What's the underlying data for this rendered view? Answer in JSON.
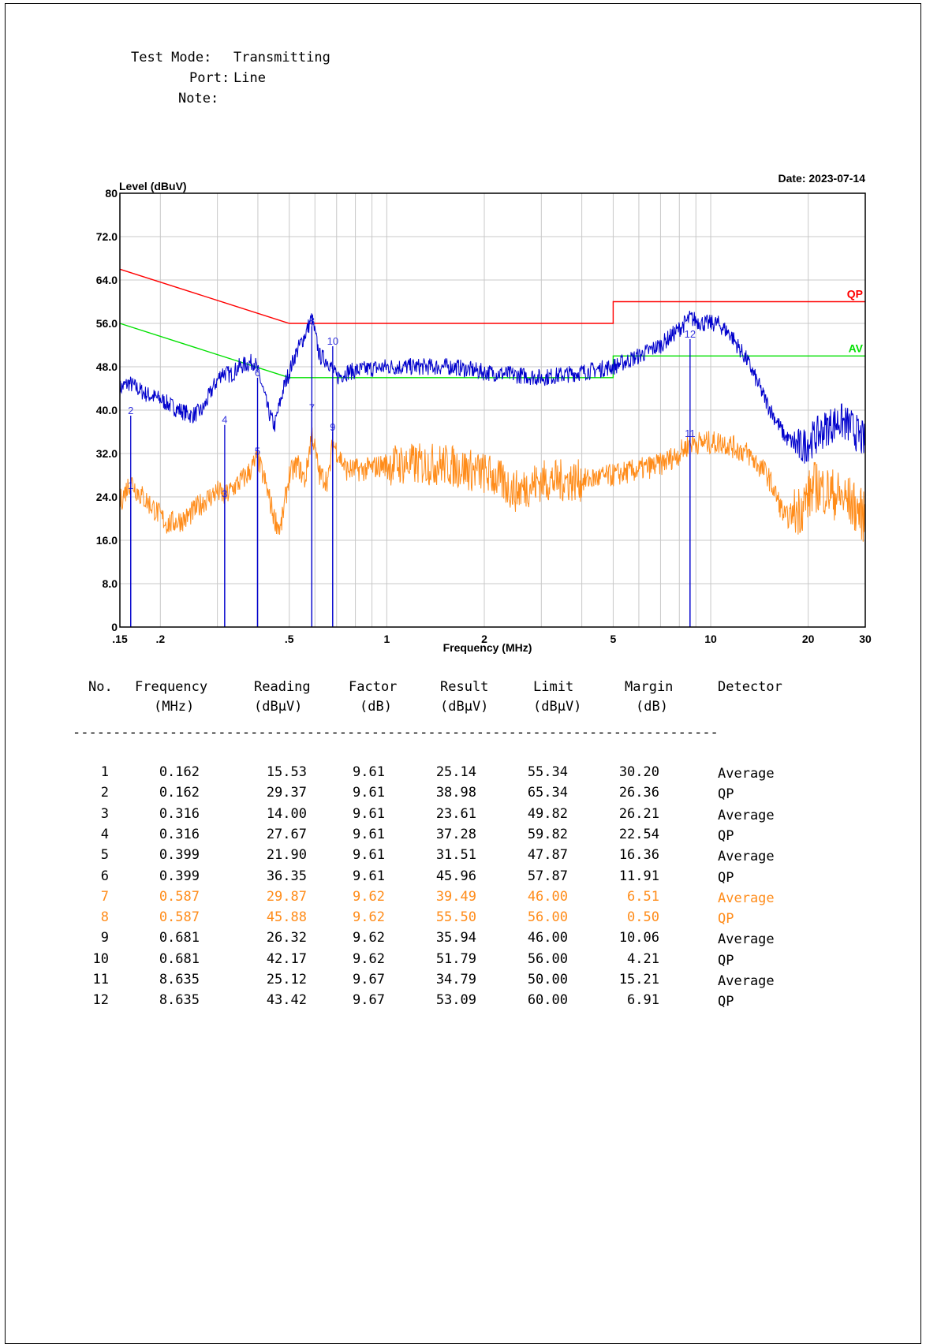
{
  "header": {
    "test_mode_label": "Test Mode:",
    "test_mode": "Transmitting",
    "port_label": "Port:",
    "port": "Line",
    "note_label": "Note:",
    "note": ""
  },
  "date_text": "Date: 2023-07-14",
  "table": {
    "columns": [
      {
        "name": "No.",
        "unit": ""
      },
      {
        "name": "Frequency",
        "unit": "(MHz)"
      },
      {
        "name": "Reading",
        "unit": "(dBµV)"
      },
      {
        "name": "Factor",
        "unit": "(dB)"
      },
      {
        "name": "Result",
        "unit": "(dBµV)"
      },
      {
        "name": "Limit",
        "unit": "(dBµV)"
      },
      {
        "name": "Margin",
        "unit": "(dB)"
      },
      {
        "name": "Detector",
        "unit": ""
      }
    ],
    "dashes": "--------------------------------------------------------------------------------",
    "rows": [
      {
        "no": "1",
        "freq": "0.162",
        "reading": "15.53",
        "factor": "9.61",
        "result": "25.14",
        "limit": "55.34",
        "margin": "30.20",
        "detector": "Average",
        "highlight": false
      },
      {
        "no": "2",
        "freq": "0.162",
        "reading": "29.37",
        "factor": "9.61",
        "result": "38.98",
        "limit": "65.34",
        "margin": "26.36",
        "detector": "QP",
        "highlight": false
      },
      {
        "no": "3",
        "freq": "0.316",
        "reading": "14.00",
        "factor": "9.61",
        "result": "23.61",
        "limit": "49.82",
        "margin": "26.21",
        "detector": "Average",
        "highlight": false
      },
      {
        "no": "4",
        "freq": "0.316",
        "reading": "27.67",
        "factor": "9.61",
        "result": "37.28",
        "limit": "59.82",
        "margin": "22.54",
        "detector": "QP",
        "highlight": false
      },
      {
        "no": "5",
        "freq": "0.399",
        "reading": "21.90",
        "factor": "9.61",
        "result": "31.51",
        "limit": "47.87",
        "margin": "16.36",
        "detector": "Average",
        "highlight": false
      },
      {
        "no": "6",
        "freq": "0.399",
        "reading": "36.35",
        "factor": "9.61",
        "result": "45.96",
        "limit": "57.87",
        "margin": "11.91",
        "detector": "QP",
        "highlight": false
      },
      {
        "no": "7",
        "freq": "0.587",
        "reading": "29.87",
        "factor": "9.62",
        "result": "39.49",
        "limit": "46.00",
        "margin": "6.51",
        "detector": "Average",
        "highlight": true
      },
      {
        "no": "8",
        "freq": "0.587",
        "reading": "45.88",
        "factor": "9.62",
        "result": "55.50",
        "limit": "56.00",
        "margin": "0.50",
        "detector": "QP",
        "highlight": true
      },
      {
        "no": "9",
        "freq": "0.681",
        "reading": "26.32",
        "factor": "9.62",
        "result": "35.94",
        "limit": "46.00",
        "margin": "10.06",
        "detector": "Average",
        "highlight": false
      },
      {
        "no": "10",
        "freq": "0.681",
        "reading": "42.17",
        "factor": "9.62",
        "result": "51.79",
        "limit": "56.00",
        "margin": "4.21",
        "detector": "QP",
        "highlight": false
      },
      {
        "no": "11",
        "freq": "8.635",
        "reading": "25.12",
        "factor": "9.67",
        "result": "34.79",
        "limit": "50.00",
        "margin": "15.21",
        "detector": "Average",
        "highlight": false
      },
      {
        "no": "12",
        "freq": "8.635",
        "reading": "43.42",
        "factor": "9.67",
        "result": "53.09",
        "limit": "60.00",
        "margin": "6.91",
        "detector": "QP",
        "highlight": false
      }
    ]
  },
  "chart_data": {
    "type": "line",
    "ylabel": "Level (dBuV)",
    "xlabel": "Frequency (MHz)",
    "x_scale": "log",
    "xlim": [
      0.15,
      30
    ],
    "ylim": [
      0,
      80
    ],
    "y_ticks": [
      {
        "v": 0,
        "label": "0"
      },
      {
        "v": 8,
        "label": "8.0"
      },
      {
        "v": 16,
        "label": "16.0"
      },
      {
        "v": 24,
        "label": "24.0"
      },
      {
        "v": 32,
        "label": "32.0"
      },
      {
        "v": 40,
        "label": "40.0"
      },
      {
        "v": 48,
        "label": "48.0"
      },
      {
        "v": 56,
        "label": "56.0"
      },
      {
        "v": 64,
        "label": "64.0"
      },
      {
        "v": 72,
        "label": "72.0"
      },
      {
        "v": 80,
        "label": "80"
      }
    ],
    "x_ticks": [
      {
        "v": 0.15,
        "label": ".15"
      },
      {
        "v": 0.2,
        "label": ".2"
      },
      {
        "v": 0.5,
        "label": ".5"
      },
      {
        "v": 1,
        "label": "1"
      },
      {
        "v": 2,
        "label": "2"
      },
      {
        "v": 5,
        "label": "5"
      },
      {
        "v": 10,
        "label": "10"
      },
      {
        "v": 20,
        "label": "20"
      },
      {
        "v": 30,
        "label": "30"
      }
    ],
    "grid": true,
    "limit_lines": [
      {
        "name": "QP",
        "color": "#ff0000",
        "points": [
          [
            0.15,
            66
          ],
          [
            0.5,
            56
          ],
          [
            5,
            56
          ],
          [
            5,
            60
          ],
          [
            30,
            60
          ]
        ]
      },
      {
        "name": "AV",
        "color": "#00e000",
        "points": [
          [
            0.15,
            56
          ],
          [
            0.5,
            46
          ],
          [
            5,
            46
          ],
          [
            5,
            50
          ],
          [
            30,
            50
          ]
        ]
      }
    ],
    "series": [
      {
        "color": "#0000cc",
        "points": [
          [
            0.15,
            44
          ],
          [
            0.16,
            45
          ],
          [
            0.18,
            43
          ],
          [
            0.2,
            42
          ],
          [
            0.22,
            40.5
          ],
          [
            0.25,
            39
          ],
          [
            0.27,
            40
          ],
          [
            0.29,
            44
          ],
          [
            0.31,
            47
          ],
          [
            0.33,
            46.5
          ],
          [
            0.35,
            48
          ],
          [
            0.37,
            48.5
          ],
          [
            0.39,
            49
          ],
          [
            0.41,
            45
          ],
          [
            0.43,
            40
          ],
          [
            0.45,
            37
          ],
          [
            0.48,
            44
          ],
          [
            0.52,
            50
          ],
          [
            0.56,
            54
          ],
          [
            0.587,
            57
          ],
          [
            0.62,
            50
          ],
          [
            0.66,
            49
          ],
          [
            0.7,
            46
          ],
          [
            0.75,
            47
          ],
          [
            0.85,
            47.5
          ],
          [
            1,
            48
          ],
          [
            1.3,
            48
          ],
          [
            1.6,
            48
          ],
          [
            2,
            47
          ],
          [
            2.5,
            46.5
          ],
          [
            3,
            46
          ],
          [
            3.5,
            46.5
          ],
          [
            4,
            47
          ],
          [
            5,
            48
          ],
          [
            6,
            50
          ],
          [
            7,
            52
          ],
          [
            8,
            55
          ],
          [
            8.635,
            57
          ],
          [
            9.5,
            56
          ],
          [
            10.5,
            56
          ],
          [
            11.5,
            54
          ],
          [
            13,
            49
          ],
          [
            15,
            41
          ],
          [
            17,
            35
          ],
          [
            19,
            33
          ],
          [
            21,
            35
          ],
          [
            23,
            37
          ],
          [
            25,
            38
          ],
          [
            27,
            37
          ],
          [
            29,
            35
          ],
          [
            30,
            34
          ]
        ]
      },
      {
        "color": "#ff8c1a",
        "points": [
          [
            0.15,
            23
          ],
          [
            0.162,
            27
          ],
          [
            0.17,
            25
          ],
          [
            0.19,
            22
          ],
          [
            0.21,
            19
          ],
          [
            0.24,
            20
          ],
          [
            0.27,
            23
          ],
          [
            0.3,
            25
          ],
          [
            0.316,
            24
          ],
          [
            0.34,
            26
          ],
          [
            0.37,
            28
          ],
          [
            0.399,
            31
          ],
          [
            0.42,
            27
          ],
          [
            0.45,
            20
          ],
          [
            0.47,
            18
          ],
          [
            0.5,
            28
          ],
          [
            0.53,
            30
          ],
          [
            0.56,
            27
          ],
          [
            0.587,
            36
          ],
          [
            0.62,
            28
          ],
          [
            0.66,
            27
          ],
          [
            0.681,
            34
          ],
          [
            0.75,
            29
          ],
          [
            0.85,
            29
          ],
          [
            1,
            30
          ],
          [
            1.2,
            30
          ],
          [
            1.5,
            30
          ],
          [
            1.8,
            29
          ],
          [
            2.1,
            28
          ],
          [
            2.5,
            25
          ],
          [
            3,
            27
          ],
          [
            4,
            27
          ],
          [
            5,
            28
          ],
          [
            6,
            29
          ],
          [
            7,
            30
          ],
          [
            8,
            32
          ],
          [
            8.635,
            34
          ],
          [
            10,
            34
          ],
          [
            11,
            34
          ],
          [
            13,
            32
          ],
          [
            15,
            28
          ],
          [
            17,
            20
          ],
          [
            19,
            22
          ],
          [
            21,
            26
          ],
          [
            23,
            25
          ],
          [
            25,
            24
          ],
          [
            27,
            23
          ],
          [
            29,
            21
          ],
          [
            30,
            20
          ]
        ]
      }
    ],
    "markers": [
      {
        "label": "1",
        "freq": 0.162,
        "level": 25.14
      },
      {
        "label": "2",
        "freq": 0.162,
        "level": 38.98
      },
      {
        "label": "3",
        "freq": 0.316,
        "level": 23.61
      },
      {
        "label": "4",
        "freq": 0.316,
        "level": 37.28
      },
      {
        "label": "5",
        "freq": 0.399,
        "level": 31.51
      },
      {
        "label": "6",
        "freq": 0.399,
        "level": 45.96
      },
      {
        "label": "7",
        "freq": 0.587,
        "level": 39.49
      },
      {
        "label": "8",
        "freq": 0.587,
        "level": 55.5
      },
      {
        "label": "9",
        "freq": 0.681,
        "level": 35.94
      },
      {
        "label": "10",
        "freq": 0.681,
        "level": 51.79
      },
      {
        "label": "11",
        "freq": 8.635,
        "level": 34.79
      },
      {
        "label": "12",
        "freq": 8.635,
        "level": 53.09
      }
    ]
  }
}
